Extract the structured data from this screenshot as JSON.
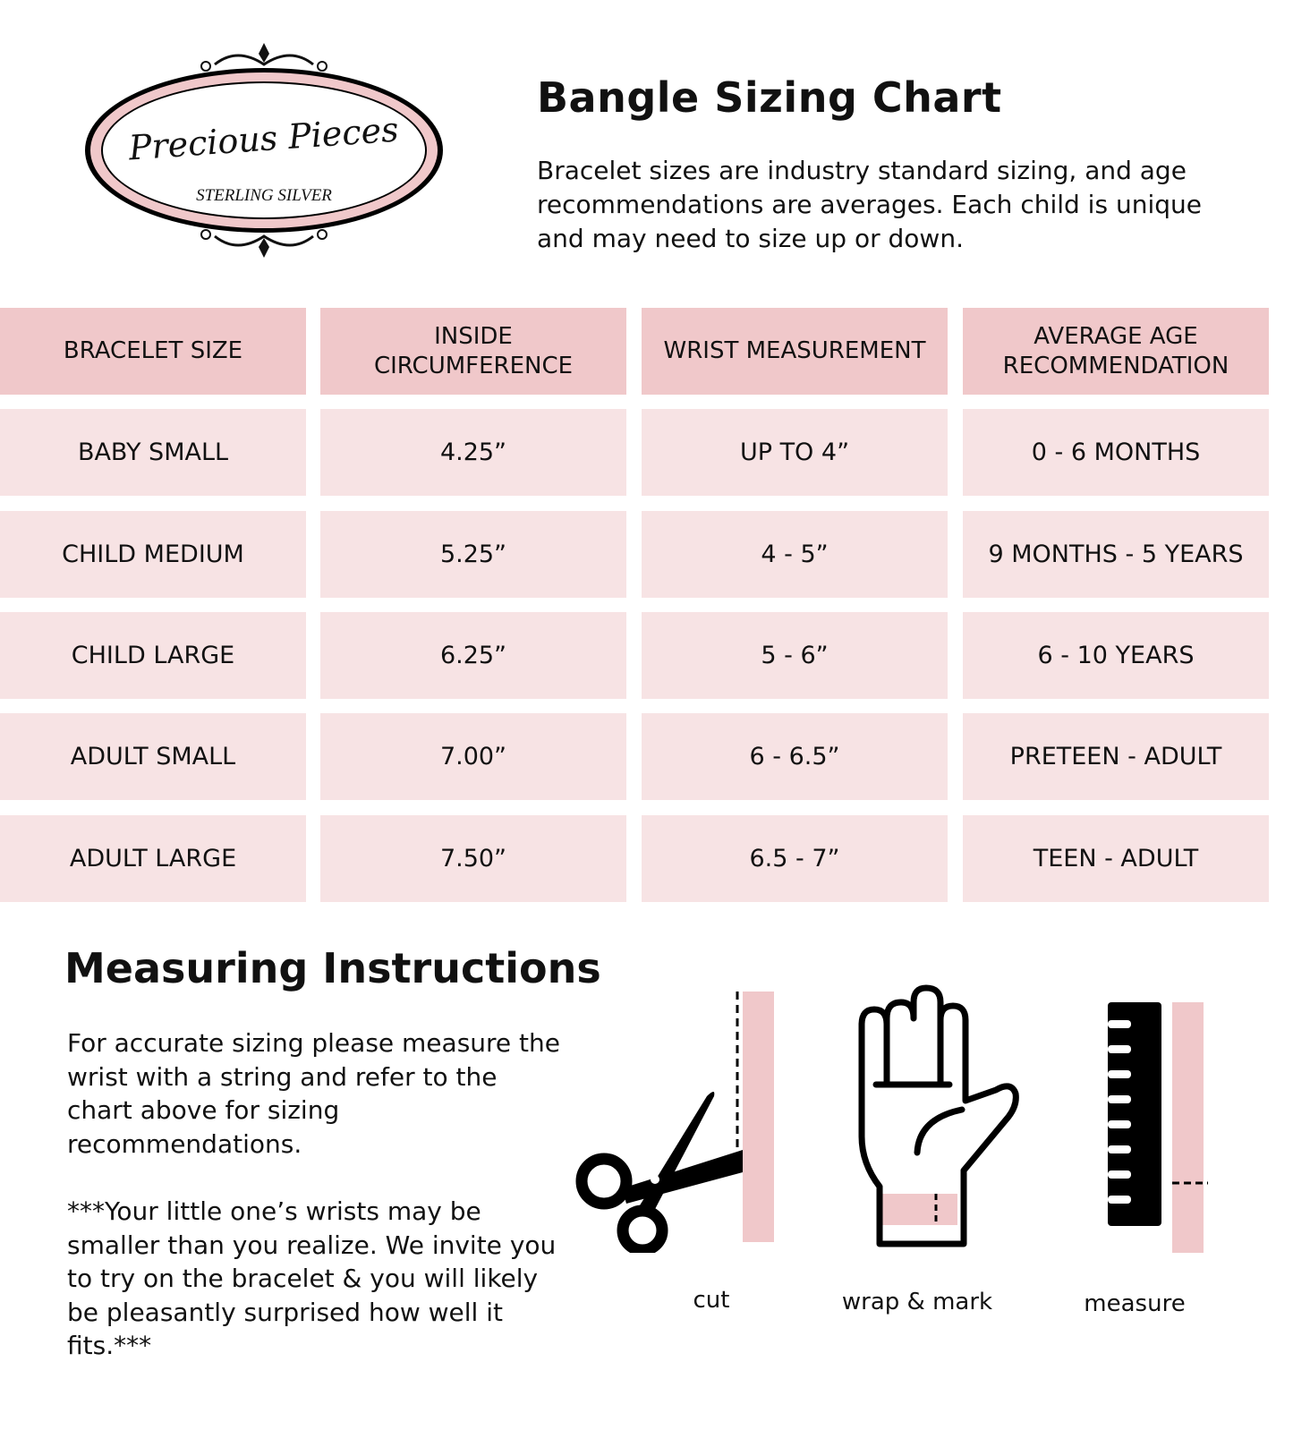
{
  "logo": {
    "brand": "Precious Pieces",
    "tagline": "STERLING SILVER",
    "colors": {
      "ring": "#f0c8ca",
      "outline": "#000000"
    }
  },
  "header": {
    "title": "Bangle Sizing Chart",
    "intro": "Bracelet sizes are industry standard sizing, and age recommendations are averages. Each child is unique and may need to size up or down."
  },
  "table": {
    "columns": [
      "BRACELET SIZE",
      "INSIDE CIRCUMFERENCE",
      "WRIST MEASUREMENT",
      "AVERAGE AGE RECOMMENDATION"
    ],
    "rows": [
      [
        "BABY SMALL",
        "4.25”",
        "UP TO 4”",
        "0 - 6 MONTHS"
      ],
      [
        "CHILD MEDIUM",
        "5.25”",
        "4 - 5”",
        "9 MONTHS - 5 YEARS"
      ],
      [
        "CHILD LARGE",
        "6.25”",
        "5 - 6”",
        "6 - 10 YEARS"
      ],
      [
        "ADULT SMALL",
        "7.00”",
        "6 - 6.5”",
        "PRETEEN - ADULT"
      ],
      [
        "ADULT LARGE",
        "7.50”",
        "6.5 - 7”",
        "TEEN - ADULT"
      ]
    ],
    "colors": {
      "header_bg": "#f0c8ca",
      "row_bg": "#f7e3e4"
    }
  },
  "instructions": {
    "title": "Measuring Instructions",
    "paragraph1": "For accurate sizing please measure the wrist with a string and refer to the chart above for sizing recommendations.",
    "paragraph2": "***Your little one’s wrists may be smaller than you realize. We invite you to try on the bracelet & you will likely be pleasantly surprised how well it fits.***",
    "steps": [
      {
        "icon": "scissors-icon",
        "label": "cut"
      },
      {
        "icon": "hand-icon",
        "label": "wrap & mark"
      },
      {
        "icon": "ruler-icon",
        "label": "measure"
      }
    ]
  }
}
